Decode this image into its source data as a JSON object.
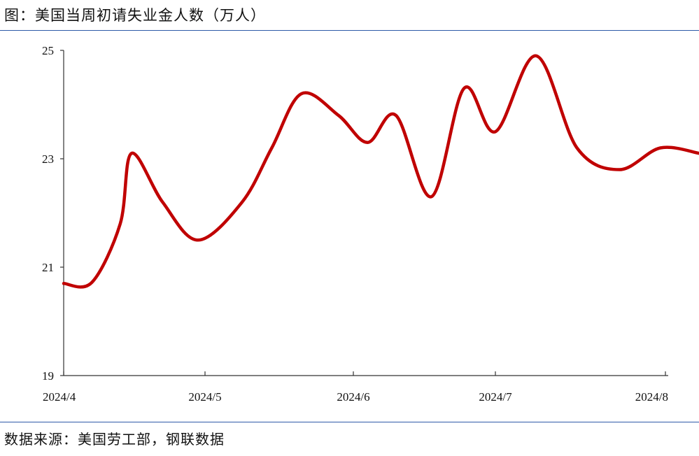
{
  "header": {
    "title": "图：美国当周初请失业金人数（万人）"
  },
  "footer": {
    "source": "数据来源：美国劳工部，钢联数据"
  },
  "chart_data": {
    "type": "line",
    "title": "图：美国当周初请失业金人数（万人）",
    "xlabel": "",
    "ylabel": "",
    "x_ticks": [
      "2024/4",
      "2024/5",
      "2024/6",
      "2024/7",
      "2024/8"
    ],
    "y_ticks": [
      19,
      21,
      23,
      25
    ],
    "ylim": [
      19,
      25
    ],
    "grid": false,
    "series": [
      {
        "color": "#c00000",
        "points": [
          {
            "x": 0.0,
            "y": 20.7
          },
          {
            "x": 0.2,
            "y": 20.72
          },
          {
            "x": 0.4,
            "y": 21.8
          },
          {
            "x": 0.48,
            "y": 23.1
          },
          {
            "x": 0.7,
            "y": 22.2
          },
          {
            "x": 0.95,
            "y": 21.5
          },
          {
            "x": 1.25,
            "y": 22.2
          },
          {
            "x": 1.45,
            "y": 23.2
          },
          {
            "x": 1.65,
            "y": 24.2
          },
          {
            "x": 1.9,
            "y": 23.8
          },
          {
            "x": 2.1,
            "y": 23.3
          },
          {
            "x": 2.3,
            "y": 23.8
          },
          {
            "x": 2.55,
            "y": 22.3
          },
          {
            "x": 2.78,
            "y": 24.3
          },
          {
            "x": 3.0,
            "y": 23.5
          },
          {
            "x": 3.24,
            "y": 24.9
          },
          {
            "x": 3.48,
            "y": 23.2
          },
          {
            "x": 3.73,
            "y": 22.8
          },
          {
            "x": 3.97,
            "y": 23.2
          },
          {
            "x": 4.2,
            "y": 23.1
          }
        ]
      }
    ]
  }
}
